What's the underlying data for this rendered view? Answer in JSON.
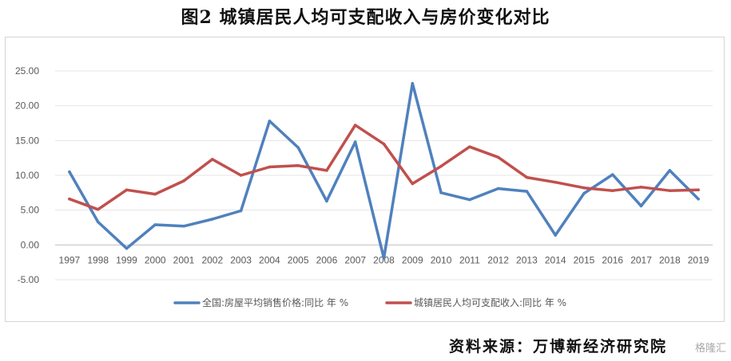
{
  "title": "图2  城镇居民人均可支配收入与房价变化对比",
  "source": "资料来源：万博新经济研究院",
  "watermark": "格隆汇",
  "chart_data": {
    "type": "line",
    "title": "",
    "xlabel": "",
    "ylabel": "",
    "categories": [
      "1997",
      "1998",
      "1999",
      "2000",
      "2001",
      "2002",
      "2003",
      "2004",
      "2005",
      "2006",
      "2007",
      "2008",
      "2009",
      "2010",
      "2011",
      "2012",
      "2013",
      "2014",
      "2015",
      "2016",
      "2017",
      "2018",
      "2019"
    ],
    "ylim": [
      -5,
      25
    ],
    "yticks": [
      "-5.00",
      "0.00",
      "5.00",
      "10.00",
      "15.00",
      "20.00",
      "25.00"
    ],
    "ytick_values": [
      -5,
      0,
      5,
      10,
      15,
      20,
      25
    ],
    "grid": true,
    "legend_position": "bottom",
    "series": [
      {
        "name": "全国:房屋平均销售价格:同比 年 %",
        "color": "#4f81bd",
        "values": [
          10.5,
          3.3,
          -0.5,
          2.9,
          2.7,
          3.7,
          4.9,
          17.8,
          14.0,
          6.3,
          14.8,
          -1.9,
          23.2,
          7.5,
          6.5,
          8.1,
          7.7,
          1.4,
          7.4,
          10.1,
          5.6,
          10.7,
          6.6
        ]
      },
      {
        "name": "城镇居民人均可支配收入:同比 年 %",
        "color": "#c0504d",
        "values": [
          6.6,
          5.1,
          7.9,
          7.3,
          9.2,
          12.3,
          10.0,
          11.2,
          11.4,
          10.7,
          17.2,
          14.5,
          8.8,
          11.3,
          14.1,
          12.6,
          9.7,
          9.0,
          8.2,
          7.8,
          8.3,
          7.8,
          7.9
        ]
      }
    ]
  }
}
